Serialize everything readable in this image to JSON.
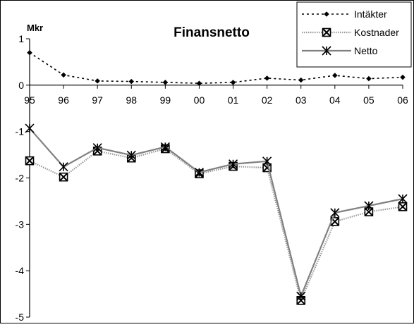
{
  "chart_data": {
    "type": "line",
    "title": "Finansnetto",
    "unit_label": "Mkr",
    "categories": [
      "95",
      "96",
      "97",
      "98",
      "99",
      "00",
      "01",
      "02",
      "03",
      "04",
      "05",
      "06"
    ],
    "y_ticks": [
      "1",
      "0",
      "-1",
      "-2",
      "-3",
      "-4",
      "-5"
    ],
    "ylim": [
      -5,
      1
    ],
    "grid": false,
    "legend_position": "top-right",
    "series": [
      {
        "name": "Intäkter",
        "color": "#000000",
        "style": "dotted",
        "marker": "diamond",
        "values": [
          0.7,
          0.22,
          0.09,
          0.08,
          0.06,
          0.04,
          0.06,
          0.15,
          0.11,
          0.21,
          0.14,
          0.17
        ]
      },
      {
        "name": "Kostnader",
        "color": "#999999",
        "style": "dotted",
        "marker": "boxed-x",
        "values": [
          -1.63,
          -1.98,
          -1.42,
          -1.57,
          -1.37,
          -1.91,
          -1.75,
          -1.78,
          -4.64,
          -2.94,
          -2.73,
          -2.62
        ]
      },
      {
        "name": "Netto",
        "color": "#808080",
        "style": "solid",
        "marker": "asterisk",
        "values": [
          -0.93,
          -1.76,
          -1.35,
          -1.51,
          -1.33,
          -1.88,
          -1.7,
          -1.64,
          -4.55,
          -2.75,
          -2.6,
          -2.45
        ]
      }
    ]
  }
}
